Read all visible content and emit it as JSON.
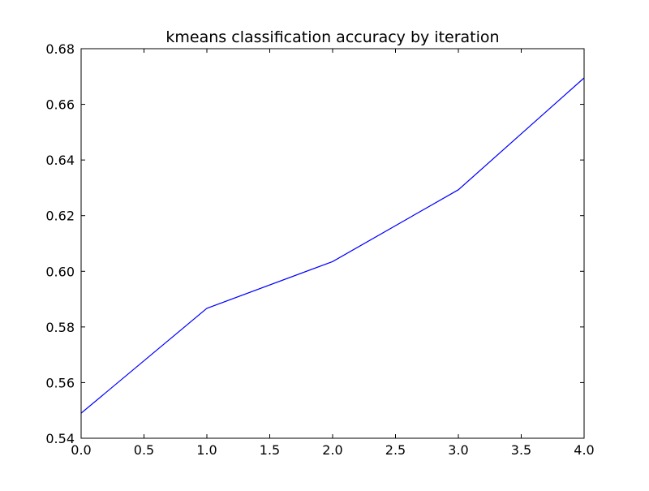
{
  "chart_data": {
    "type": "line",
    "title": "kmeans classification accuracy by iteration",
    "xlabel": "",
    "ylabel": "",
    "xlim": [
      0.0,
      4.0
    ],
    "ylim": [
      0.54,
      0.68
    ],
    "x_ticks": [
      "0.0",
      "0.5",
      "1.0",
      "1.5",
      "2.0",
      "2.5",
      "3.0",
      "3.5",
      "4.0"
    ],
    "y_ticks": [
      "0.54",
      "0.56",
      "0.58",
      "0.60",
      "0.62",
      "0.64",
      "0.66",
      "0.68"
    ],
    "grid": false,
    "legend": "none",
    "series": [
      {
        "x": [
          0,
          1,
          2,
          3,
          4
        ],
        "values": [
          0.549,
          0.5867,
          0.6035,
          0.6293,
          0.6695
        ],
        "color": "#0000ff"
      }
    ]
  }
}
